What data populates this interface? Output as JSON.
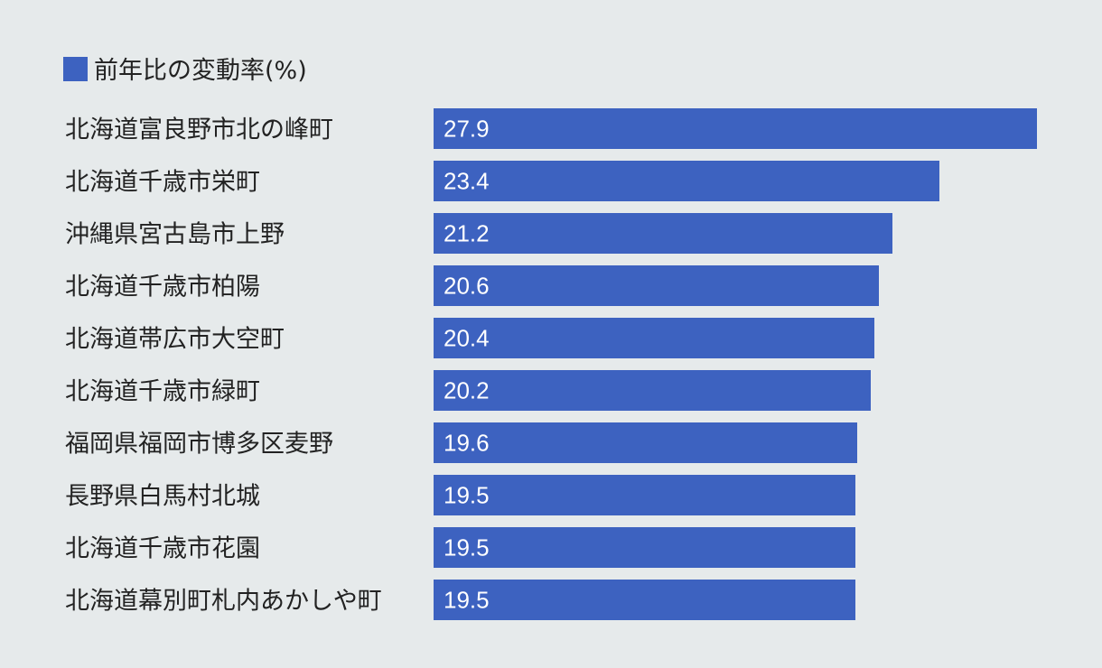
{
  "chart_data": {
    "type": "bar",
    "orientation": "horizontal",
    "legend": {
      "label": "前年比の変動率(%)",
      "placement": "top-left"
    },
    "categories": [
      "北海道富良野市北の峰町",
      "北海道千歳市栄町",
      "沖縄県宮古島市上野",
      "北海道千歳市柏陽",
      "北海道帯広市大空町",
      "北海道千歳市緑町",
      "福岡県福岡市博多区麦野",
      "長野県白馬村北城",
      "北海道千歳市花園",
      "北海道幕別町札内あかしや町"
    ],
    "series": [
      {
        "name": "前年比の変動率(%)",
        "values": [
          27.9,
          23.4,
          21.2,
          20.6,
          20.4,
          20.2,
          19.6,
          19.5,
          19.5,
          19.5
        ],
        "labels": [
          "27.9",
          "23.4",
          "21.2",
          "20.6",
          "20.4",
          "20.2",
          "19.6",
          "19.5",
          "19.5",
          "19.5"
        ]
      }
    ],
    "xlim": [
      0,
      27.9
    ],
    "grid": false,
    "colors": {
      "bar": "#3d62c0",
      "background": "#e6eaeb",
      "text": "#222222",
      "value_text": "#ffffff"
    }
  }
}
